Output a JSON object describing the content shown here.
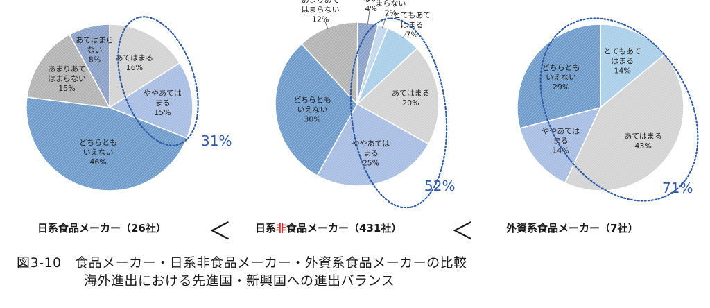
{
  "colors": {
    "very_applicable": "#aacfe8",
    "applicable": "#d3d3d3",
    "somewhat_applicable": "#a7bde2",
    "neutral": "#6f9ccb",
    "not_very": "#b4b4b4",
    "not_applicable": "#8ba2c8",
    "not_at_all": "#c1d7ed",
    "highlight": "#2d59a6"
  },
  "chart_data": [
    {
      "type": "pie",
      "title": "日系食品メーカー（26社）",
      "slices": [
        {
          "label": "あてはまる",
          "value": 16,
          "value_label": "16%",
          "color_key": "applicable"
        },
        {
          "label": "ややあてはまる",
          "value": 15,
          "value_label": "15%",
          "color_key": "somewhat_applicable"
        },
        {
          "label": "どちらともいえない",
          "value": 46,
          "value_label": "46%",
          "color_key": "neutral"
        },
        {
          "label": "あまりあてはまらない",
          "value": 15,
          "value_label": "15%",
          "color_key": "not_very"
        },
        {
          "label": "あてはまらない",
          "value": 8,
          "value_label": "8%",
          "color_key": "not_applicable"
        }
      ],
      "highlight_total": "31%"
    },
    {
      "type": "pie",
      "title": "日系非食品メーカー（431社）",
      "slices": [
        {
          "label": "とてもあてはまる",
          "value": 7,
          "value_label": "7%",
          "color_key": "very_applicable"
        },
        {
          "label": "あてはまる",
          "value": 20,
          "value_label": "20%",
          "color_key": "applicable"
        },
        {
          "label": "ややあてはまる",
          "value": 25,
          "value_label": "25%",
          "color_key": "somewhat_applicable"
        },
        {
          "label": "どちらともいえない",
          "value": 30,
          "value_label": "30%",
          "color_key": "neutral"
        },
        {
          "label": "あまりあてはまらない",
          "value": 12,
          "value_label": "12%",
          "color_key": "not_very"
        },
        {
          "label": "あてはまらない",
          "value": 4,
          "value_label": "4%",
          "color_key": "not_applicable"
        },
        {
          "label": "全くあてはまらない",
          "value": 2,
          "value_label": "2%",
          "color_key": "not_at_all"
        }
      ],
      "highlight_total": "52%"
    },
    {
      "type": "pie",
      "title": "外資系食品メーカー（7社）",
      "slices": [
        {
          "label": "とてもあてはまる",
          "value": 14,
          "value_label": "14%",
          "color_key": "very_applicable"
        },
        {
          "label": "あてはまる",
          "value": 43,
          "value_label": "43%",
          "color_key": "applicable"
        },
        {
          "label": "ややあてはまる",
          "value": 14,
          "value_label": "14%",
          "color_key": "somewhat_applicable"
        },
        {
          "label": "どちらともいえない",
          "value": 29,
          "value_label": "29%",
          "color_key": "neutral"
        }
      ],
      "highlight_total": "71%"
    }
  ],
  "labels": {
    "cat1": "日系食品メーカー（26社）",
    "cat2_pre": "日系",
    "cat2_red": "非",
    "cat2_post": "食品メーカー（431社）",
    "cat3": "外資系食品メーカー（7社）",
    "lt1": "＜",
    "lt2": "＜"
  },
  "caption": {
    "line1": "図3-10　食品メーカー・日系非食品メーカー・外資系食品メーカーの比較",
    "line2": "海外進出における先進国・新興国への進出バランス"
  }
}
